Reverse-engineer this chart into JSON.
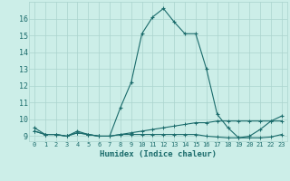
{
  "xlabel": "Humidex (Indice chaleur)",
  "background_color": "#cceee8",
  "grid_color": "#aad4ce",
  "line_color": "#1a6b6b",
  "x_values": [
    0,
    1,
    2,
    3,
    4,
    5,
    6,
    7,
    8,
    9,
    10,
    11,
    12,
    13,
    14,
    15,
    16,
    17,
    18,
    19,
    20,
    21,
    22,
    23
  ],
  "line1_y": [
    9.5,
    9.1,
    9.1,
    9.0,
    9.3,
    9.1,
    9.0,
    9.0,
    10.7,
    12.2,
    15.1,
    16.1,
    16.6,
    15.8,
    15.1,
    15.1,
    13.0,
    10.3,
    9.5,
    8.9,
    9.0,
    9.4,
    9.9,
    10.2
  ],
  "line2_y": [
    9.3,
    9.1,
    9.1,
    9.0,
    9.2,
    9.1,
    9.0,
    9.0,
    9.1,
    9.2,
    9.3,
    9.4,
    9.5,
    9.6,
    9.7,
    9.8,
    9.8,
    9.9,
    9.9,
    9.9,
    9.9,
    9.9,
    9.9,
    9.9
  ],
  "line3_y": [
    9.3,
    9.1,
    9.1,
    9.0,
    9.2,
    9.1,
    9.0,
    9.0,
    9.1,
    9.1,
    9.1,
    9.1,
    9.1,
    9.1,
    9.1,
    9.1,
    9.0,
    8.95,
    8.9,
    8.9,
    8.9,
    8.9,
    8.95,
    9.1
  ],
  "xlim": [
    -0.5,
    23.5
  ],
  "ylim": [
    8.7,
    17.0
  ],
  "yticks": [
    9,
    10,
    11,
    12,
    13,
    14,
    15,
    16
  ],
  "xtick_labels": [
    "0",
    "1",
    "2",
    "3",
    "4",
    "5",
    "6",
    "7",
    "8",
    "9",
    "10",
    "11",
    "12",
    "13",
    "14",
    "15",
    "16",
    "17",
    "18",
    "19",
    "20",
    "21",
    "22",
    "23"
  ]
}
